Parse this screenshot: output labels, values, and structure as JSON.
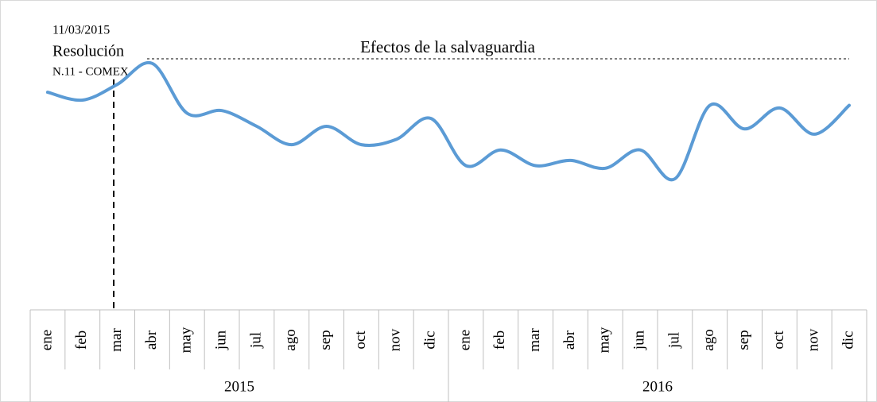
{
  "chart_data": {
    "type": "line",
    "annotations": [
      "11/03/2015",
      "Resolución",
      "N.11 - COMEX",
      "Efectos de la salvaguardia"
    ],
    "categories": [
      "ene",
      "feb",
      "mar",
      "abr",
      "may",
      "jun",
      "jul",
      "ago",
      "sep",
      "oct",
      "nov",
      "dic",
      "ene",
      "feb",
      "mar",
      "abr",
      "may",
      "jun",
      "jul",
      "ago",
      "sep",
      "oct",
      "nov",
      "dic"
    ],
    "year_groups": [
      "2015",
      "2016"
    ],
    "series": [
      {
        "color": "#5b9bd5",
        "values": [
          83,
          80,
          86,
          94,
          75,
          76,
          70,
          63,
          70,
          63,
          65,
          73,
          55,
          61,
          55,
          57,
          54,
          61,
          50,
          78,
          69,
          77,
          67,
          78
        ]
      }
    ],
    "ylim": [
      0,
      100
    ]
  }
}
